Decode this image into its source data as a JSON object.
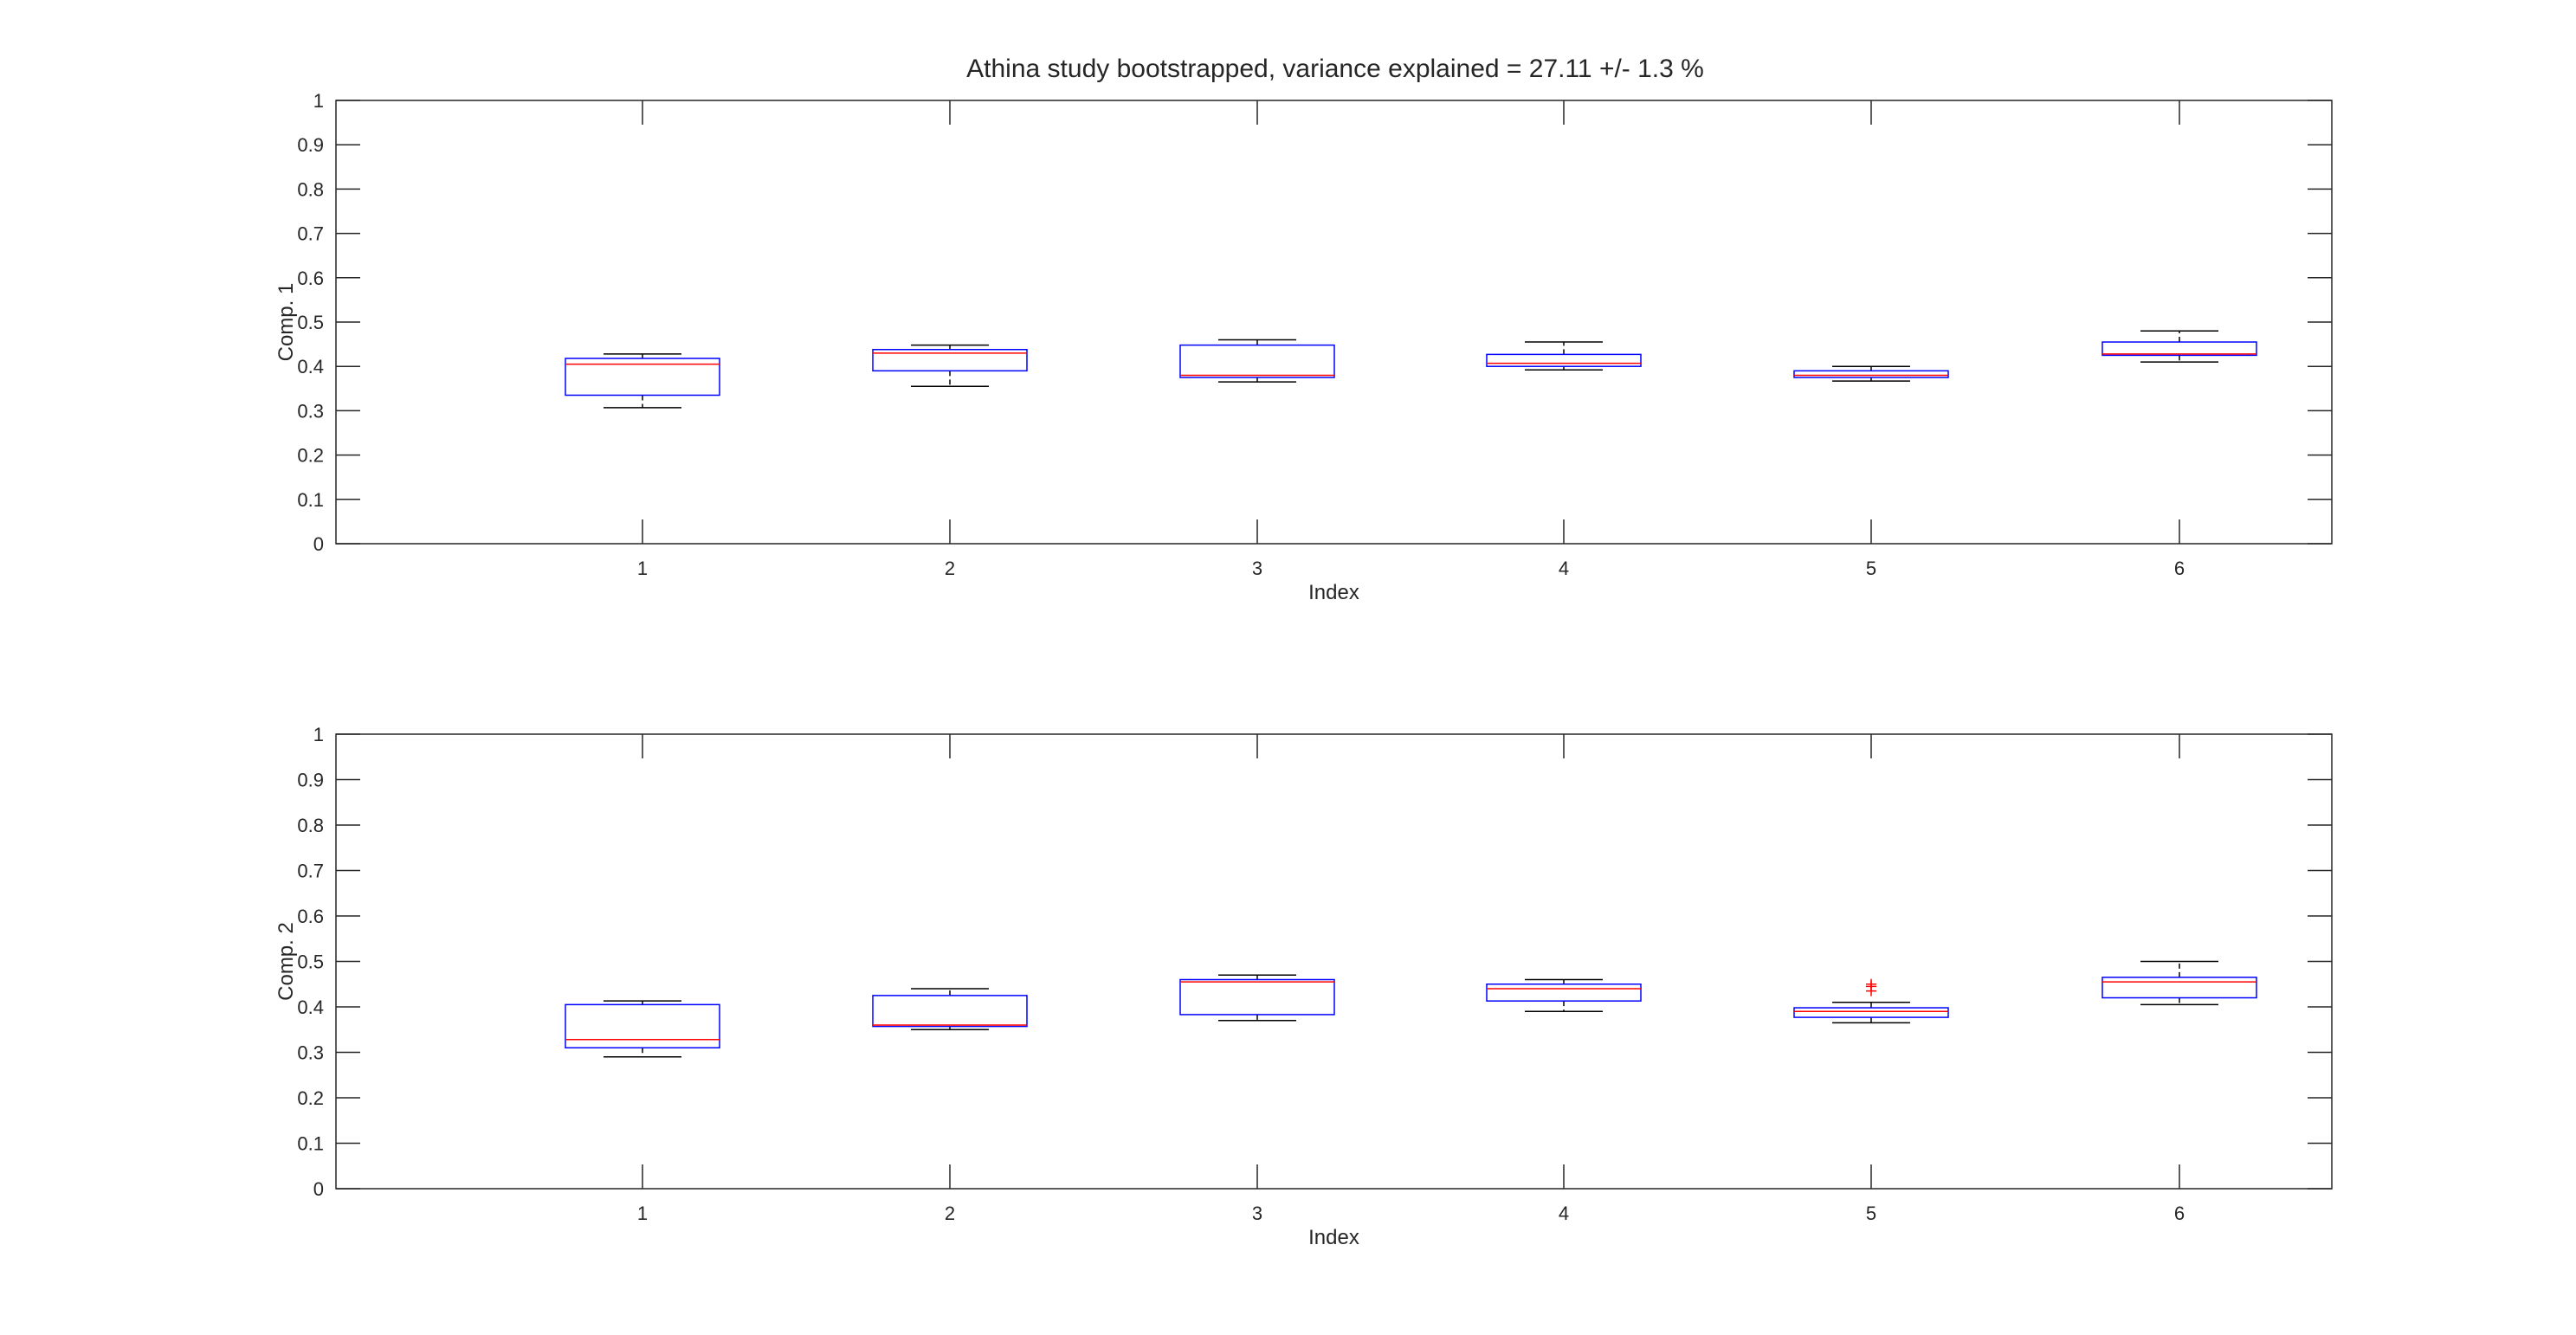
{
  "figure": {
    "title": "Athina study bootstrapped, variance explained = 27.11 +/- 1.3 %"
  },
  "colors": {
    "axis": "#262626",
    "box": "#0000ff",
    "median": "#ff0000",
    "whisker": "#000000",
    "outlier": "#ff0000",
    "background": "#ffffff"
  },
  "chart_data": [
    {
      "type": "box",
      "xlabel": "Index",
      "ylabel": "Comp. 1",
      "ylim": [
        0,
        1
      ],
      "yticks": [
        "0",
        "0.1",
        "0.2",
        "0.3",
        "0.4",
        "0.5",
        "0.6",
        "0.7",
        "0.8",
        "0.9",
        "1"
      ],
      "categories": [
        "1",
        "2",
        "3",
        "4",
        "5",
        "6"
      ],
      "boxes": [
        {
          "min": 0.307,
          "q1": 0.335,
          "median": 0.405,
          "q3": 0.418,
          "max": 0.428,
          "outliers": []
        },
        {
          "min": 0.355,
          "q1": 0.39,
          "median": 0.43,
          "q3": 0.438,
          "max": 0.448,
          "outliers": []
        },
        {
          "min": 0.365,
          "q1": 0.375,
          "median": 0.38,
          "q3": 0.448,
          "max": 0.46,
          "outliers": []
        },
        {
          "min": 0.392,
          "q1": 0.4,
          "median": 0.407,
          "q3": 0.427,
          "max": 0.455,
          "outliers": []
        },
        {
          "min": 0.367,
          "q1": 0.375,
          "median": 0.38,
          "q3": 0.39,
          "max": 0.4,
          "outliers": []
        },
        {
          "min": 0.41,
          "q1": 0.425,
          "median": 0.428,
          "q3": 0.455,
          "max": 0.48,
          "outliers": []
        }
      ]
    },
    {
      "type": "box",
      "xlabel": "Index",
      "ylabel": "Comp. 2",
      "ylim": [
        0,
        1
      ],
      "yticks": [
        "0",
        "0.1",
        "0.2",
        "0.3",
        "0.4",
        "0.5",
        "0.6",
        "0.7",
        "0.8",
        "0.9",
        "1"
      ],
      "categories": [
        "1",
        "2",
        "3",
        "4",
        "5",
        "6"
      ],
      "boxes": [
        {
          "min": 0.29,
          "q1": 0.31,
          "median": 0.328,
          "q3": 0.405,
          "max": 0.413,
          "outliers": []
        },
        {
          "min": 0.35,
          "q1": 0.357,
          "median": 0.36,
          "q3": 0.425,
          "max": 0.44,
          "outliers": []
        },
        {
          "min": 0.37,
          "q1": 0.383,
          "median": 0.455,
          "q3": 0.46,
          "max": 0.47,
          "outliers": []
        },
        {
          "min": 0.39,
          "q1": 0.413,
          "median": 0.44,
          "q3": 0.45,
          "max": 0.46,
          "outliers": []
        },
        {
          "min": 0.365,
          "q1": 0.377,
          "median": 0.39,
          "q3": 0.398,
          "max": 0.41,
          "outliers": [
            0.435,
            0.445,
            0.45
          ]
        },
        {
          "min": 0.405,
          "q1": 0.42,
          "median": 0.455,
          "q3": 0.465,
          "max": 0.5,
          "outliers": []
        }
      ]
    }
  ]
}
